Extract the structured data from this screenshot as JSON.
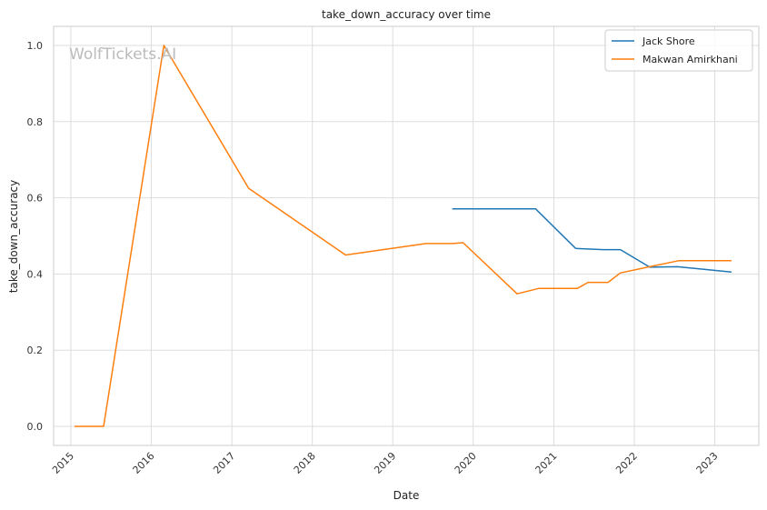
{
  "watermark": "WolfTickets.AI",
  "chart_data": {
    "type": "line",
    "title": "take_down_accuracy over time",
    "xlabel": "Date",
    "ylabel": "take_down_accuracy",
    "xlim": [
      "2014-10-15",
      "2023-07-20"
    ],
    "ylim": [
      -0.05,
      1.05
    ],
    "x_ticks": [
      "2015",
      "2016",
      "2017",
      "2018",
      "2019",
      "2020",
      "2021",
      "2022",
      "2023"
    ],
    "y_ticks": [
      "0.0",
      "0.2",
      "0.4",
      "0.6",
      "0.8",
      "1.0"
    ],
    "grid": true,
    "legend_position": "top-right",
    "series": [
      {
        "name": "Jack Shore",
        "color": "#1f77b4",
        "points": [
          [
            "2019-09-28",
            0.571
          ],
          [
            "2020-10-10",
            0.571
          ],
          [
            "2021-04-10",
            0.467
          ],
          [
            "2021-08-14",
            0.464
          ],
          [
            "2021-10-30",
            0.464
          ],
          [
            "2022-03-12",
            0.418
          ],
          [
            "2022-07-16",
            0.419
          ],
          [
            "2023-03-18",
            0.405
          ]
        ]
      },
      {
        "name": "Makwan Amirkhani",
        "color": "#ff7f0e",
        "points": [
          [
            "2015-01-18",
            0.0
          ],
          [
            "2015-05-30",
            0.0
          ],
          [
            "2016-02-27",
            1.0
          ],
          [
            "2017-03-18",
            0.625
          ],
          [
            "2018-06-01",
            0.45
          ],
          [
            "2019-06-01",
            0.48
          ],
          [
            "2019-10-01",
            0.48
          ],
          [
            "2019-11-16",
            0.482
          ],
          [
            "2020-07-18",
            0.348
          ],
          [
            "2020-10-24",
            0.362
          ],
          [
            "2021-04-17",
            0.362
          ],
          [
            "2021-06-05",
            0.378
          ],
          [
            "2021-09-04",
            0.378
          ],
          [
            "2021-10-30",
            0.403
          ],
          [
            "2022-03-19",
            0.42
          ],
          [
            "2022-07-23",
            0.435
          ],
          [
            "2023-03-18",
            0.435
          ]
        ]
      }
    ]
  }
}
